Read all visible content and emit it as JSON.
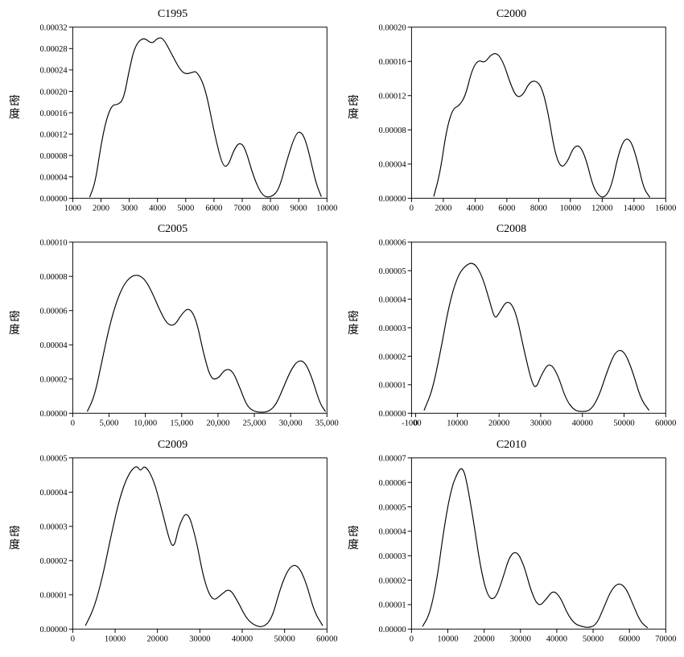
{
  "page": {
    "background_color": "#ffffff",
    "text_color": "#000000",
    "font_family": "Times New Roman, serif",
    "grid": {
      "cols": 2,
      "rows": 3
    }
  },
  "panels": [
    {
      "id": "c1995",
      "title": "C1995",
      "type": "line",
      "ylabel": "密度",
      "xlim": [
        1000,
        10000
      ],
      "ylim": [
        0,
        0.00032
      ],
      "xticks": [
        1000,
        2000,
        3000,
        4000,
        5000,
        6000,
        7000,
        8000,
        9000,
        10000
      ],
      "xtick_labels": [
        "1000",
        "2000",
        "3000",
        "4000",
        "5000",
        "6000",
        "7000",
        "8000",
        "9000",
        "10000"
      ],
      "yticks": [
        0,
        4e-05,
        8e-05,
        0.00012,
        0.00016,
        0.0002,
        0.00024,
        0.00028,
        0.00032
      ],
      "ytick_labels": [
        "0.00000",
        "0.00004",
        "0.00008",
        "0.00012",
        "0.00016",
        "0.00020",
        "0.00024",
        "0.00028",
        "0.00032"
      ],
      "line_color": "#000000",
      "line_width": 1.2,
      "axis_color": "#000000",
      "title_fontsize": 14,
      "tick_fontsize": 11,
      "series": [
        [
          1600,
          2e-06
        ],
        [
          1800,
          3e-05
        ],
        [
          2000,
          0.0001
        ],
        [
          2200,
          0.00015
        ],
        [
          2400,
          0.000175
        ],
        [
          2600,
          0.000175
        ],
        [
          2800,
          0.000185
        ],
        [
          3000,
          0.00024
        ],
        [
          3200,
          0.000285
        ],
        [
          3500,
          0.000302
        ],
        [
          3800,
          0.000288
        ],
        [
          4000,
          0.0003
        ],
        [
          4200,
          0.0003
        ],
        [
          4500,
          0.00027
        ],
        [
          4800,
          0.00024
        ],
        [
          5000,
          0.000232
        ],
        [
          5200,
          0.000235
        ],
        [
          5400,
          0.000238
        ],
        [
          5700,
          0.000205
        ],
        [
          6000,
          0.000125
        ],
        [
          6300,
          6e-05
        ],
        [
          6500,
          6e-05
        ],
        [
          6700,
          9e-05
        ],
        [
          6900,
          0.000105
        ],
        [
          7100,
          9.5e-05
        ],
        [
          7400,
          4e-05
        ],
        [
          7700,
          5e-06
        ],
        [
          8000,
          1e-06
        ],
        [
          8300,
          1.5e-05
        ],
        [
          8600,
          7.5e-05
        ],
        [
          8900,
          0.000122
        ],
        [
          9100,
          0.000125
        ],
        [
          9300,
          0.0001
        ],
        [
          9600,
          3e-05
        ],
        [
          9800,
          3e-06
        ]
      ]
    },
    {
      "id": "c2000",
      "title": "C2000",
      "type": "line",
      "ylabel": "密度",
      "xlim": [
        0,
        16000
      ],
      "ylim": [
        0,
        0.0002
      ],
      "xticks": [
        0,
        2000,
        4000,
        6000,
        8000,
        10000,
        12000,
        14000,
        16000
      ],
      "xtick_labels": [
        "0",
        "2000",
        "4000",
        "6000",
        "8000",
        "10000",
        "12000",
        "14000",
        "16000"
      ],
      "yticks": [
        0,
        4e-05,
        8e-05,
        0.00012,
        0.00016,
        0.0002
      ],
      "ytick_labels": [
        "0.00000",
        "0.00004",
        "0.00008",
        "0.00012",
        "0.00016",
        "0.00020"
      ],
      "line_color": "#000000",
      "line_width": 1.2,
      "axis_color": "#000000",
      "title_fontsize": 14,
      "tick_fontsize": 11,
      "series": [
        [
          1400,
          2e-06
        ],
        [
          1800,
          3e-05
        ],
        [
          2200,
          8e-05
        ],
        [
          2600,
          0.000105
        ],
        [
          3000,
          0.000108
        ],
        [
          3400,
          0.00012
        ],
        [
          3800,
          0.00015
        ],
        [
          4200,
          0.000162
        ],
        [
          4600,
          0.000158
        ],
        [
          5000,
          0.000168
        ],
        [
          5400,
          0.00017
        ],
        [
          5800,
          0.000158
        ],
        [
          6200,
          0.000135
        ],
        [
          6600,
          0.000118
        ],
        [
          7000,
          0.00012
        ],
        [
          7400,
          0.000135
        ],
        [
          7800,
          0.000138
        ],
        [
          8200,
          0.00013
        ],
        [
          8600,
          0.0001
        ],
        [
          9000,
          5.5e-05
        ],
        [
          9400,
          3.5e-05
        ],
        [
          9800,
          4.2e-05
        ],
        [
          10200,
          6e-05
        ],
        [
          10600,
          6.2e-05
        ],
        [
          11000,
          4.5e-05
        ],
        [
          11400,
          1.5e-05
        ],
        [
          11800,
          2e-06
        ],
        [
          12200,
          1e-06
        ],
        [
          12600,
          1.5e-05
        ],
        [
          13000,
          5e-05
        ],
        [
          13400,
          7e-05
        ],
        [
          13800,
          6.8e-05
        ],
        [
          14200,
          4.5e-05
        ],
        [
          14600,
          1.2e-05
        ],
        [
          15000,
          1e-06
        ]
      ]
    },
    {
      "id": "c2005",
      "title": "C2005",
      "type": "line",
      "ylabel": "密度",
      "xlim": [
        0,
        35000
      ],
      "ylim": [
        0,
        0.0001
      ],
      "xticks": [
        0,
        5000,
        10000,
        15000,
        20000,
        25000,
        30000,
        35000
      ],
      "xtick_labels": [
        "0",
        "5,000",
        "10,000",
        "15,000",
        "20,000",
        "25,000",
        "30,000",
        "35,000"
      ],
      "yticks": [
        0,
        2e-05,
        4e-05,
        6e-05,
        8e-05,
        0.0001
      ],
      "ytick_labels": [
        "0.00000",
        "0.00002",
        "0.00004",
        "0.00006",
        "0.00008",
        "0.00010"
      ],
      "line_color": "#000000",
      "line_width": 1.2,
      "axis_color": "#000000",
      "title_fontsize": 14,
      "tick_fontsize": 11,
      "series": [
        [
          2000,
          1e-06
        ],
        [
          3000,
          1e-05
        ],
        [
          4000,
          3e-05
        ],
        [
          5000,
          5e-05
        ],
        [
          6000,
          6.5e-05
        ],
        [
          7000,
          7.5e-05
        ],
        [
          8000,
          8e-05
        ],
        [
          9000,
          8.1e-05
        ],
        [
          10000,
          7.8e-05
        ],
        [
          11000,
          7e-05
        ],
        [
          12000,
          6e-05
        ],
        [
          13000,
          5.2e-05
        ],
        [
          14000,
          5.1e-05
        ],
        [
          15000,
          5.8e-05
        ],
        [
          16000,
          6.2e-05
        ],
        [
          17000,
          5.5e-05
        ],
        [
          18000,
          3.5e-05
        ],
        [
          19000,
          2e-05
        ],
        [
          20000,
          2e-05
        ],
        [
          21000,
          2.6e-05
        ],
        [
          22000,
          2.5e-05
        ],
        [
          23000,
          1.5e-05
        ],
        [
          24000,
          4e-06
        ],
        [
          25000,
          1e-06
        ],
        [
          26000,
          5e-07
        ],
        [
          27000,
          1e-06
        ],
        [
          28000,
          5e-06
        ],
        [
          29000,
          1.5e-05
        ],
        [
          30000,
          2.5e-05
        ],
        [
          31000,
          3.1e-05
        ],
        [
          32000,
          3e-05
        ],
        [
          33000,
          2e-05
        ],
        [
          34000,
          6e-06
        ],
        [
          34800,
          1e-06
        ]
      ]
    },
    {
      "id": "c2008",
      "title": "C2008",
      "type": "line",
      "ylabel": "密度",
      "xlim": [
        -1000,
        60000
      ],
      "ylim": [
        0,
        6e-05
      ],
      "xticks": [
        -1000,
        0,
        10000,
        20000,
        30000,
        40000,
        50000,
        60000
      ],
      "xtick_labels": [
        "-1000",
        "0",
        "10000",
        "20000",
        "30000",
        "40000",
        "50000",
        "60000"
      ],
      "yticks": [
        0,
        1e-05,
        2e-05,
        3e-05,
        4e-05,
        5e-05,
        6e-05
      ],
      "ytick_labels": [
        "0.00000",
        "0.00001",
        "0.00002",
        "0.00003",
        "0.00004",
        "0.00005",
        "0.00006"
      ],
      "line_color": "#000000",
      "line_width": 1.2,
      "axis_color": "#000000",
      "title_fontsize": 14,
      "tick_fontsize": 11,
      "series": [
        [
          2000,
          1e-06
        ],
        [
          4000,
          8e-06
        ],
        [
          6000,
          2.2e-05
        ],
        [
          8000,
          3.8e-05
        ],
        [
          10000,
          4.8e-05
        ],
        [
          12000,
          5.2e-05
        ],
        [
          14000,
          5.3e-05
        ],
        [
          16000,
          4.8e-05
        ],
        [
          18000,
          3.8e-05
        ],
        [
          19000,
          3.3e-05
        ],
        [
          20000,
          3.5e-05
        ],
        [
          22000,
          4e-05
        ],
        [
          24000,
          3.6e-05
        ],
        [
          26000,
          2.2e-05
        ],
        [
          28000,
          1e-05
        ],
        [
          29000,
          9e-06
        ],
        [
          30000,
          1.3e-05
        ],
        [
          32000,
          1.8e-05
        ],
        [
          34000,
          1.4e-05
        ],
        [
          36000,
          5e-06
        ],
        [
          38000,
          1e-06
        ],
        [
          40000,
          5e-07
        ],
        [
          42000,
          1e-06
        ],
        [
          44000,
          6e-06
        ],
        [
          46000,
          1.5e-05
        ],
        [
          48000,
          2.2e-05
        ],
        [
          50000,
          2.2e-05
        ],
        [
          52000,
          1.5e-05
        ],
        [
          54000,
          5e-06
        ],
        [
          56000,
          1e-06
        ]
      ]
    },
    {
      "id": "c2009",
      "title": "C2009",
      "type": "line",
      "ylabel": "密度",
      "xlim": [
        0,
        60000
      ],
      "ylim": [
        0,
        5e-05
      ],
      "xticks": [
        0,
        10000,
        20000,
        30000,
        40000,
        50000,
        60000
      ],
      "xtick_labels": [
        "0",
        "10000",
        "20000",
        "30000",
        "40000",
        "50000",
        "60000"
      ],
      "yticks": [
        0,
        1e-05,
        2e-05,
        3e-05,
        4e-05,
        5e-05
      ],
      "ytick_labels": [
        "0.00000",
        "0.00001",
        "0.00002",
        "0.00003",
        "0.00004",
        "0.00005"
      ],
      "line_color": "#000000",
      "line_width": 1.2,
      "axis_color": "#000000",
      "title_fontsize": 14,
      "tick_fontsize": 11,
      "series": [
        [
          3000,
          1e-06
        ],
        [
          5000,
          6e-06
        ],
        [
          7000,
          1.5e-05
        ],
        [
          9000,
          2.7e-05
        ],
        [
          11000,
          3.8e-05
        ],
        [
          13000,
          4.5e-05
        ],
        [
          15000,
          4.8e-05
        ],
        [
          16000,
          4.6e-05
        ],
        [
          17000,
          4.8e-05
        ],
        [
          19000,
          4.4e-05
        ],
        [
          21000,
          3.5e-05
        ],
        [
          23000,
          2.5e-05
        ],
        [
          24000,
          2.4e-05
        ],
        [
          25000,
          3e-05
        ],
        [
          27000,
          3.5e-05
        ],
        [
          29000,
          2.7e-05
        ],
        [
          31000,
          1.4e-05
        ],
        [
          33000,
          8e-06
        ],
        [
          35000,
          1e-05
        ],
        [
          37000,
          1.2e-05
        ],
        [
          39000,
          8e-06
        ],
        [
          41000,
          3e-06
        ],
        [
          43000,
          1e-06
        ],
        [
          45000,
          5e-07
        ],
        [
          47000,
          3e-06
        ],
        [
          49000,
          1.2e-05
        ],
        [
          51000,
          1.8e-05
        ],
        [
          53000,
          1.9e-05
        ],
        [
          55000,
          1.4e-05
        ],
        [
          57000,
          5e-06
        ],
        [
          59000,
          1e-06
        ]
      ]
    },
    {
      "id": "c2010",
      "title": "C2010",
      "type": "line",
      "ylabel": "密度",
      "xlim": [
        0,
        70000
      ],
      "ylim": [
        0,
        7e-05
      ],
      "xticks": [
        0,
        10000,
        20000,
        30000,
        40000,
        50000,
        60000,
        70000
      ],
      "xtick_labels": [
        "0",
        "10000",
        "20000",
        "30000",
        "40000",
        "50000",
        "60000",
        "70000"
      ],
      "yticks": [
        0,
        1e-05,
        2e-05,
        3e-05,
        4e-05,
        5e-05,
        6e-05,
        7e-05
      ],
      "ytick_labels": [
        "0.00000",
        "0.00001",
        "0.00002",
        "0.00003",
        "0.00004",
        "0.00005",
        "0.00006",
        "0.00007"
      ],
      "line_color": "#000000",
      "line_width": 1.2,
      "axis_color": "#000000",
      "title_fontsize": 14,
      "tick_fontsize": 11,
      "series": [
        [
          3000,
          1e-06
        ],
        [
          5000,
          6e-06
        ],
        [
          7000,
          2e-05
        ],
        [
          9000,
          4.2e-05
        ],
        [
          11000,
          5.8e-05
        ],
        [
          13000,
          6.5e-05
        ],
        [
          14000,
          6.6e-05
        ],
        [
          15000,
          6.2e-05
        ],
        [
          17000,
          4.5e-05
        ],
        [
          19000,
          2.5e-05
        ],
        [
          21000,
          1.3e-05
        ],
        [
          23000,
          1.2e-05
        ],
        [
          25000,
          2e-05
        ],
        [
          27000,
          3e-05
        ],
        [
          29000,
          3.2e-05
        ],
        [
          31000,
          2.6e-05
        ],
        [
          33000,
          1.5e-05
        ],
        [
          35000,
          9e-06
        ],
        [
          37000,
          1.2e-05
        ],
        [
          39000,
          1.6e-05
        ],
        [
          41000,
          1.3e-05
        ],
        [
          43000,
          6e-06
        ],
        [
          45000,
          2e-06
        ],
        [
          47000,
          1e-06
        ],
        [
          49000,
          5e-07
        ],
        [
          51000,
          2e-06
        ],
        [
          53000,
          9e-06
        ],
        [
          55000,
          1.6e-05
        ],
        [
          57000,
          1.9e-05
        ],
        [
          59000,
          1.7e-05
        ],
        [
          61000,
          1e-05
        ],
        [
          63000,
          3e-06
        ],
        [
          65000,
          5e-07
        ]
      ]
    }
  ]
}
